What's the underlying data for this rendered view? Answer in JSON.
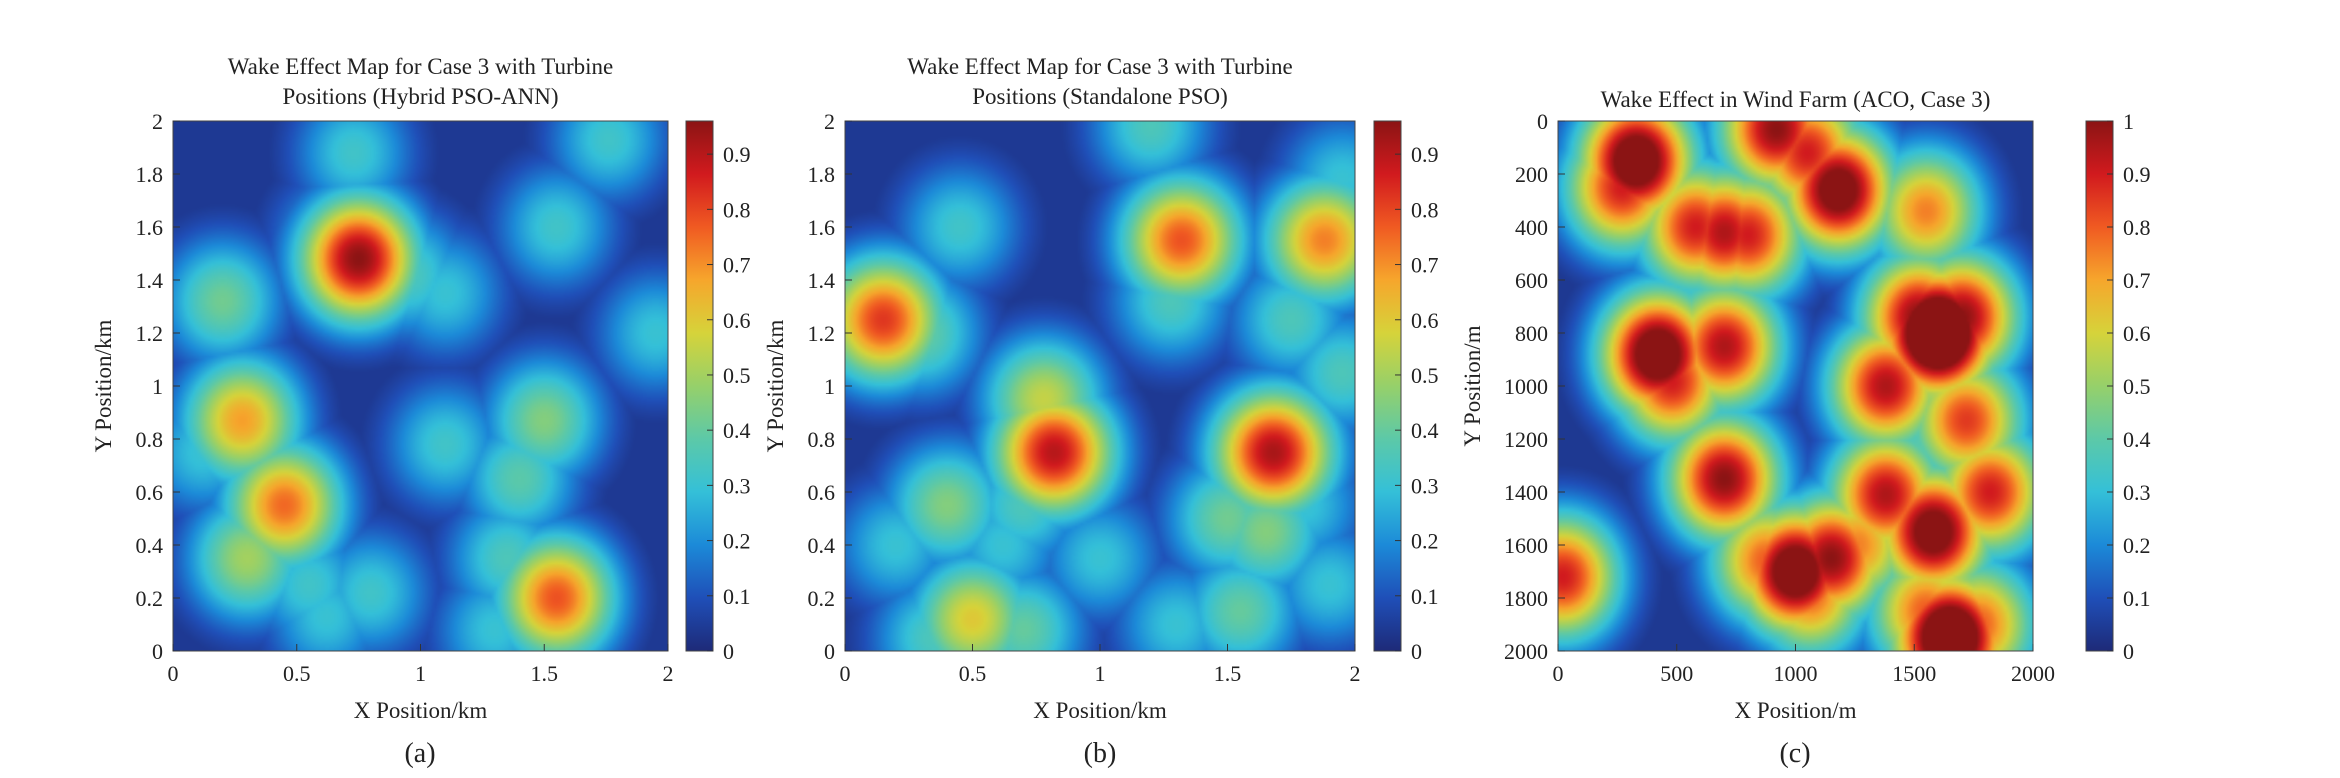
{
  "figure": {
    "panel_count": 3
  },
  "colormap": [
    "#1e2a78",
    "#1f4fb8",
    "#1c8ad8",
    "#34c0d8",
    "#5cc9a8",
    "#96d06a",
    "#d6d33a",
    "#f6a62c",
    "#f05a22",
    "#d11a1e",
    "#8b1414"
  ],
  "chart_data": [
    {
      "type": "heatmap",
      "panel_label": "(a)",
      "title_lines": [
        "Wake Effect Map for Case 3 with Turbine",
        "Positions (Hybrid PSO-ANN)"
      ],
      "xlabel": "X Position/km",
      "ylabel": "Y Position/km",
      "xlim": [
        0,
        2
      ],
      "ylim": [
        0,
        2
      ],
      "y_direction": "up",
      "xticks": [
        "0",
        "0.5",
        "1",
        "1.5",
        "2"
      ],
      "yticks": [
        "0",
        "0.2",
        "0.4",
        "0.6",
        "0.8",
        "1",
        "1.2",
        "1.4",
        "1.6",
        "1.8",
        "2"
      ],
      "colorbar": {
        "range": [
          0,
          0.96
        ],
        "ticks": [
          "0",
          "0.1",
          "0.2",
          "0.3",
          "0.4",
          "0.5",
          "0.6",
          "0.7",
          "0.8",
          "0.9"
        ]
      },
      "hotspots": [
        {
          "x": 0.75,
          "y": 1.48,
          "v": 0.96
        },
        {
          "x": 0.65,
          "y": 1.55,
          "v": 0.3
        },
        {
          "x": 0.95,
          "y": 1.42,
          "v": 0.35
        },
        {
          "x": 1.1,
          "y": 1.35,
          "v": 0.3
        },
        {
          "x": 0.73,
          "y": 1.88,
          "v": 0.32
        },
        {
          "x": 1.76,
          "y": 1.93,
          "v": 0.32
        },
        {
          "x": 1.55,
          "y": 1.6,
          "v": 0.32
        },
        {
          "x": 1.95,
          "y": 1.2,
          "v": 0.3
        },
        {
          "x": 0.2,
          "y": 1.32,
          "v": 0.42
        },
        {
          "x": 0.28,
          "y": 0.87,
          "v": 0.68
        },
        {
          "x": 0.12,
          "y": 0.75,
          "v": 0.3
        },
        {
          "x": 0.45,
          "y": 0.55,
          "v": 0.75
        },
        {
          "x": 0.3,
          "y": 0.35,
          "v": 0.5
        },
        {
          "x": 0.55,
          "y": 0.25,
          "v": 0.32
        },
        {
          "x": 0.62,
          "y": 0.13,
          "v": 0.3
        },
        {
          "x": 0.8,
          "y": 0.22,
          "v": 0.32
        },
        {
          "x": 1.1,
          "y": 0.78,
          "v": 0.32
        },
        {
          "x": 1.5,
          "y": 0.87,
          "v": 0.45
        },
        {
          "x": 1.4,
          "y": 0.65,
          "v": 0.38
        },
        {
          "x": 1.55,
          "y": 0.2,
          "v": 0.78
        },
        {
          "x": 1.35,
          "y": 0.35,
          "v": 0.35
        },
        {
          "x": 1.3,
          "y": 0.08,
          "v": 0.3
        }
      ]
    },
    {
      "type": "heatmap",
      "panel_label": "(b)",
      "title_lines": [
        "Wake Effect Map for Case 3 with Turbine",
        "Positions (Standalone PSO)"
      ],
      "xlabel": "X Position/km",
      "ylabel": "Y Position/km",
      "xlim": [
        0,
        2
      ],
      "ylim": [
        0,
        2
      ],
      "y_direction": "up",
      "xticks": [
        "0",
        "0.5",
        "1",
        "1.5",
        "2"
      ],
      "yticks": [
        "0",
        "0.2",
        "0.4",
        "0.6",
        "0.8",
        "1",
        "1.2",
        "1.4",
        "1.6",
        "1.8",
        "2"
      ],
      "colorbar": {
        "range": [
          0,
          0.96
        ],
        "ticks": [
          "0",
          "0.1",
          "0.2",
          "0.3",
          "0.4",
          "0.5",
          "0.6",
          "0.7",
          "0.8",
          "0.9"
        ]
      },
      "hotspots": [
        {
          "x": 0.15,
          "y": 1.25,
          "v": 0.82
        },
        {
          "x": 0.3,
          "y": 1.2,
          "v": 0.4
        },
        {
          "x": 0.45,
          "y": 1.6,
          "v": 0.32
        },
        {
          "x": 1.2,
          "y": 1.98,
          "v": 0.35
        },
        {
          "x": 1.32,
          "y": 1.55,
          "v": 0.78
        },
        {
          "x": 1.28,
          "y": 1.32,
          "v": 0.35
        },
        {
          "x": 1.88,
          "y": 1.55,
          "v": 0.72
        },
        {
          "x": 1.95,
          "y": 1.78,
          "v": 0.3
        },
        {
          "x": 1.75,
          "y": 1.25,
          "v": 0.35
        },
        {
          "x": 1.95,
          "y": 1.05,
          "v": 0.35
        },
        {
          "x": 0.82,
          "y": 0.75,
          "v": 0.9
        },
        {
          "x": 0.78,
          "y": 0.95,
          "v": 0.55
        },
        {
          "x": 0.7,
          "y": 0.55,
          "v": 0.35
        },
        {
          "x": 0.4,
          "y": 0.55,
          "v": 0.45
        },
        {
          "x": 0.2,
          "y": 0.4,
          "v": 0.3
        },
        {
          "x": 0.62,
          "y": 0.4,
          "v": 0.3
        },
        {
          "x": 0.5,
          "y": 0.12,
          "v": 0.6
        },
        {
          "x": 0.35,
          "y": 0.05,
          "v": 0.35
        },
        {
          "x": 0.7,
          "y": 0.08,
          "v": 0.4
        },
        {
          "x": 1.0,
          "y": 0.35,
          "v": 0.3
        },
        {
          "x": 1.68,
          "y": 0.75,
          "v": 0.92
        },
        {
          "x": 1.5,
          "y": 0.5,
          "v": 0.42
        },
        {
          "x": 1.65,
          "y": 0.45,
          "v": 0.45
        },
        {
          "x": 1.55,
          "y": 0.15,
          "v": 0.4
        },
        {
          "x": 1.3,
          "y": 0.1,
          "v": 0.3
        },
        {
          "x": 1.9,
          "y": 0.25,
          "v": 0.3
        },
        {
          "x": 1.8,
          "y": 0.55,
          "v": 0.3
        }
      ]
    },
    {
      "type": "heatmap",
      "panel_label": "(c)",
      "title_lines": [
        "Wake Effect in Wind Farm (ACO, Case 3)"
      ],
      "xlabel": "X Position/m",
      "ylabel": "Y Position/m",
      "xlim": [
        0,
        2000
      ],
      "ylim": [
        0,
        2000
      ],
      "y_direction": "down",
      "xticks": [
        "0",
        "500",
        "1000",
        "1500",
        "2000"
      ],
      "yticks": [
        "0",
        "200",
        "400",
        "600",
        "800",
        "1000",
        "1200",
        "1400",
        "1600",
        "1800",
        "2000"
      ],
      "colorbar": {
        "range": [
          0,
          1
        ],
        "ticks": [
          "0",
          "0.1",
          "0.2",
          "0.3",
          "0.4",
          "0.5",
          "0.6",
          "0.7",
          "0.8",
          "0.9",
          "1"
        ]
      },
      "hotspots": [
        {
          "x": 330,
          "y": 150,
          "v": 1.15
        },
        {
          "x": 270,
          "y": 250,
          "v": 0.9
        },
        {
          "x": 920,
          "y": 30,
          "v": 1.0
        },
        {
          "x": 1050,
          "y": 120,
          "v": 0.9
        },
        {
          "x": 1180,
          "y": 260,
          "v": 1.1
        },
        {
          "x": 580,
          "y": 400,
          "v": 0.9
        },
        {
          "x": 700,
          "y": 420,
          "v": 0.95
        },
        {
          "x": 800,
          "y": 430,
          "v": 0.9
        },
        {
          "x": 1550,
          "y": 340,
          "v": 0.75
        },
        {
          "x": 420,
          "y": 880,
          "v": 1.15
        },
        {
          "x": 480,
          "y": 980,
          "v": 0.9
        },
        {
          "x": 700,
          "y": 850,
          "v": 0.95
        },
        {
          "x": 580,
          "y": 850,
          "v": 0.35
        },
        {
          "x": 1600,
          "y": 800,
          "v": 1.35
        },
        {
          "x": 1700,
          "y": 740,
          "v": 1.0
        },
        {
          "x": 1520,
          "y": 740,
          "v": 1.0
        },
        {
          "x": 1380,
          "y": 1000,
          "v": 0.95
        },
        {
          "x": 1650,
          "y": 1000,
          "v": 0.6
        },
        {
          "x": 1720,
          "y": 1130,
          "v": 0.85
        },
        {
          "x": 700,
          "y": 1350,
          "v": 1.0
        },
        {
          "x": 1380,
          "y": 1410,
          "v": 0.95
        },
        {
          "x": 1820,
          "y": 1400,
          "v": 0.9
        },
        {
          "x": 1580,
          "y": 1550,
          "v": 1.1
        },
        {
          "x": 1680,
          "y": 1420,
          "v": 0.5
        },
        {
          "x": 1450,
          "y": 1420,
          "v": 0.4
        },
        {
          "x": 1530,
          "y": 1250,
          "v": 0.4
        },
        {
          "x": 1700,
          "y": 1300,
          "v": 0.45
        },
        {
          "x": 1000,
          "y": 1700,
          "v": 1.15
        },
        {
          "x": 1150,
          "y": 1650,
          "v": 1.0
        },
        {
          "x": 880,
          "y": 1660,
          "v": 0.8
        },
        {
          "x": 1060,
          "y": 1780,
          "v": 0.8
        },
        {
          "x": 1260,
          "y": 1600,
          "v": 0.75
        },
        {
          "x": 1650,
          "y": 1950,
          "v": 1.25
        },
        {
          "x": 1550,
          "y": 1850,
          "v": 0.8
        },
        {
          "x": 1770,
          "y": 1900,
          "v": 0.8
        },
        {
          "x": 1620,
          "y": 1750,
          "v": 0.6
        },
        {
          "x": 20,
          "y": 1720,
          "v": 0.9
        }
      ]
    }
  ]
}
